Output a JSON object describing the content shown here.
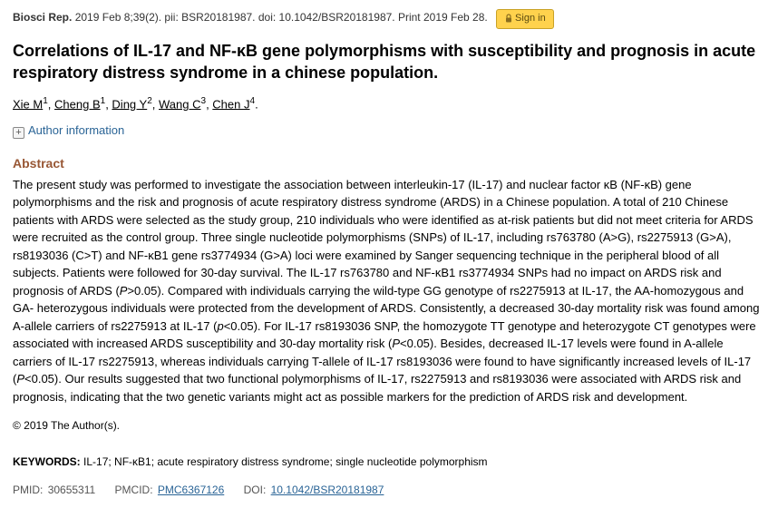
{
  "citation": {
    "journal": "Biosci Rep.",
    "date_vol": "2019 Feb 8;39(2). pii: BSR20181987. doi: 10.1042/BSR20181987. Print 2019 Feb 28."
  },
  "signin_label": "Sign in",
  "title": "Correlations of IL-17 and NF-κB gene polymorphisms with susceptibility and prognosis in acute respiratory distress syndrome in a chinese population.",
  "authors": [
    {
      "name": "Xie M",
      "aff": "1"
    },
    {
      "name": "Cheng B",
      "aff": "1"
    },
    {
      "name": "Ding Y",
      "aff": "2"
    },
    {
      "name": "Wang C",
      "aff": "3"
    },
    {
      "name": "Chen J",
      "aff": "4"
    }
  ],
  "author_info_label": "Author information",
  "abstract": {
    "header": "Abstract",
    "body_parts": [
      "The present study was performed to investigate the association between interleukin-17 (IL-17) and nuclear factor κB (NF-κB) gene polymorphisms and the risk and prognosis of acute respiratory distress syndrome (ARDS) in a Chinese population. A total of 210 Chinese patients with ARDS were selected as the study group, 210 individuals who were identified as at-risk patients but did not meet criteria for ARDS were recruited as the control group. Three single nucleotide polymorphisms (SNPs) of IL-17, including rs763780 (A>G), rs2275913 (G>A), rs8193036 (C>T) and NF-κB1 gene rs3774934 (G>A) loci were examined by Sanger sequencing technique in the peripheral blood of all subjects. Patients were followed for 30-day survival. The IL-17 rs763780 and NF-κB1 rs3774934 SNPs had no impact on ARDS risk and prognosis of ARDS (",
      "P",
      ">0.05). Compared with individuals carrying the wild-type GG genotype of rs2275913 at IL-17, the AA-homozygous and GA- heterozygous individuals were protected from the development of ARDS. Consistently, a decreased 30-day mortality risk was found among A-allele carriers of rs2275913 at IL-17 (",
      "p",
      "<0.05). For IL-17 rs8193036 SNP, the homozygote TT genotype and heterozygote CT genotypes were associated with increased ARDS susceptibility and 30-day mortality risk (",
      "P",
      "<0.05). Besides, decreased IL-17 levels were found in A-allele carriers of IL-17 rs2275913, whereas individuals carrying T-allele of IL-17 rs8193036 were found to have significantly increased levels of IL-17 (",
      "P",
      "<0.05). Our results suggested that two functional polymorphisms of IL-17, rs2275913 and rs8193036 were associated with ARDS risk and prognosis, indicating that the two genetic variants might act as possible markers for the prediction of ARDS risk and development."
    ]
  },
  "copyright": "© 2019 The Author(s).",
  "keywords": {
    "label": "KEYWORDS:",
    "text": "IL-17; NF-κB1; acute respiratory distress syndrome; single nucleotide polymorphism"
  },
  "ids": {
    "pmid_label": "PMID:",
    "pmid": "30655311",
    "pmcid_label": "PMCID:",
    "pmcid": "PMC6367126",
    "doi_label": "DOI:",
    "doi": "10.1042/BSR20181987"
  }
}
